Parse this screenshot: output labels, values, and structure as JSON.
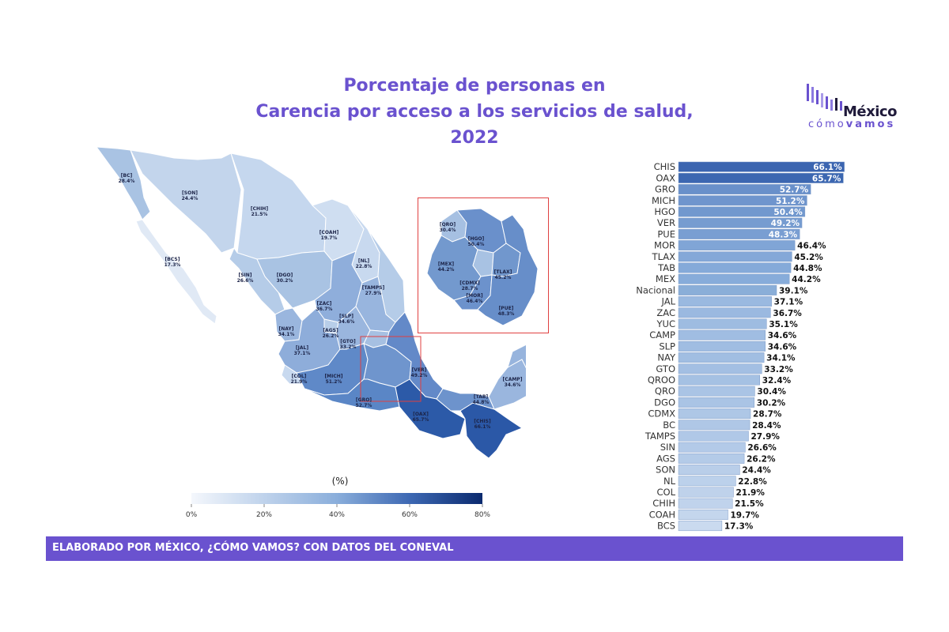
{
  "title_line1": "Porcentaje de personas en",
  "title_line2": "Carencia por acceso a los servicios de salud, 2022",
  "logo": {
    "word1": "México",
    "word2a": "cómo",
    "word2b": "vamos"
  },
  "legend": {
    "title": "(%)",
    "ticks": [
      "0%",
      "20%",
      "40%",
      "60%",
      "80%"
    ],
    "min": 0,
    "max": 80
  },
  "footer": "ELABORADO POR MÉXICO, ¿CÓMO VAMOS? CON DATOS DEL CONEVAL",
  "colors": {
    "accent": "#6a52cf",
    "scale_low": "#f4f7fc",
    "scale_high": "#0b2a6e",
    "highlight": "#8aaed8"
  },
  "chart_data": {
    "type": "bar",
    "orientation": "horizontal",
    "categories": [
      "CHIS",
      "OAX",
      "GRO",
      "MICH",
      "HGO",
      "VER",
      "PUE",
      "MOR",
      "TLAX",
      "TAB",
      "MEX",
      "Nacional",
      "JAL",
      "ZAC",
      "YUC",
      "CAMP",
      "SLP",
      "NAY",
      "GTO",
      "QROO",
      "QRO",
      "DGO",
      "CDMX",
      "BC",
      "TAMPS",
      "SIN",
      "AGS",
      "SON",
      "NL",
      "COL",
      "CHIH",
      "COAH",
      "BCS"
    ],
    "values": [
      66.1,
      65.7,
      52.7,
      51.2,
      50.4,
      49.2,
      48.3,
      46.4,
      45.2,
      44.8,
      44.2,
      39.1,
      37.1,
      36.7,
      35.1,
      34.6,
      34.6,
      34.1,
      33.2,
      32.4,
      30.4,
      30.2,
      28.7,
      28.4,
      27.9,
      26.6,
      26.2,
      24.4,
      22.8,
      21.9,
      21.5,
      19.7,
      17.3
    ],
    "value_labels": [
      "66.1%",
      "65.7%",
      "52.7%",
      "51.2%",
      "50.4%",
      "49.2%",
      "48.3%",
      "46.4%",
      "45.2%",
      "44.8%",
      "44.2%",
      "39.1%",
      "37.1%",
      "36.7%",
      "35.1%",
      "34.6%",
      "34.6%",
      "34.1%",
      "33.2%",
      "32.4%",
      "30.4%",
      "30.2%",
      "28.7%",
      "28.4%",
      "27.9%",
      "26.6%",
      "26.2%",
      "24.4%",
      "22.8%",
      "21.9%",
      "21.5%",
      "19.7%",
      "17.3%"
    ],
    "highlight_category": "Nacional"
  },
  "map_labels": [
    {
      "code": "[BC]",
      "value": "28.4%"
    },
    {
      "code": "[SON]",
      "value": "24.4%"
    },
    {
      "code": "[CHIH]",
      "value": "21.5%"
    },
    {
      "code": "[COAH]",
      "value": "19.7%"
    },
    {
      "code": "[BCS]",
      "value": "17.3%"
    },
    {
      "code": "[NL]",
      "value": "22.8%"
    },
    {
      "code": "[SIN]",
      "value": "26.6%"
    },
    {
      "code": "[DGO]",
      "value": "30.2%"
    },
    {
      "code": "[TAMPS]",
      "value": "27.9%"
    },
    {
      "code": "[ZAC]",
      "value": "36.7%"
    },
    {
      "code": "[SLP]",
      "value": "34.6%"
    },
    {
      "code": "[NAY]",
      "value": "34.1%"
    },
    {
      "code": "[AGS]",
      "value": "26.2%"
    },
    {
      "code": "[JAL]",
      "value": "37.1%"
    },
    {
      "code": "[GTO]",
      "value": "33.2%"
    },
    {
      "code": "[COL]",
      "value": "21.9%"
    },
    {
      "code": "[MICH]",
      "value": "51.2%"
    },
    {
      "code": "[GRO]",
      "value": "52.7%"
    },
    {
      "code": "[VER]",
      "value": "49.2%"
    },
    {
      "code": "[OAX]",
      "value": "65.7%"
    },
    {
      "code": "[CHIS]",
      "value": "66.1%"
    },
    {
      "code": "[TAB]",
      "value": "44.8%"
    },
    {
      "code": "[CAMP]",
      "value": "34.6%"
    },
    {
      "code": "[YUC]",
      "value": "35.1%"
    },
    {
      "code": "[QROO]",
      "value": "32.4%"
    }
  ],
  "inset_labels": [
    {
      "code": "[QRO]",
      "value": "30.4%"
    },
    {
      "code": "[HGO]",
      "value": "50.4%"
    },
    {
      "code": "[MEX]",
      "value": "44.2%"
    },
    {
      "code": "[CDMX]",
      "value": "28.7%"
    },
    {
      "code": "[TLAX]",
      "value": "45.2%"
    },
    {
      "code": "[MOR]",
      "value": "46.4%"
    },
    {
      "code": "[PUE]",
      "value": "48.3%"
    }
  ]
}
